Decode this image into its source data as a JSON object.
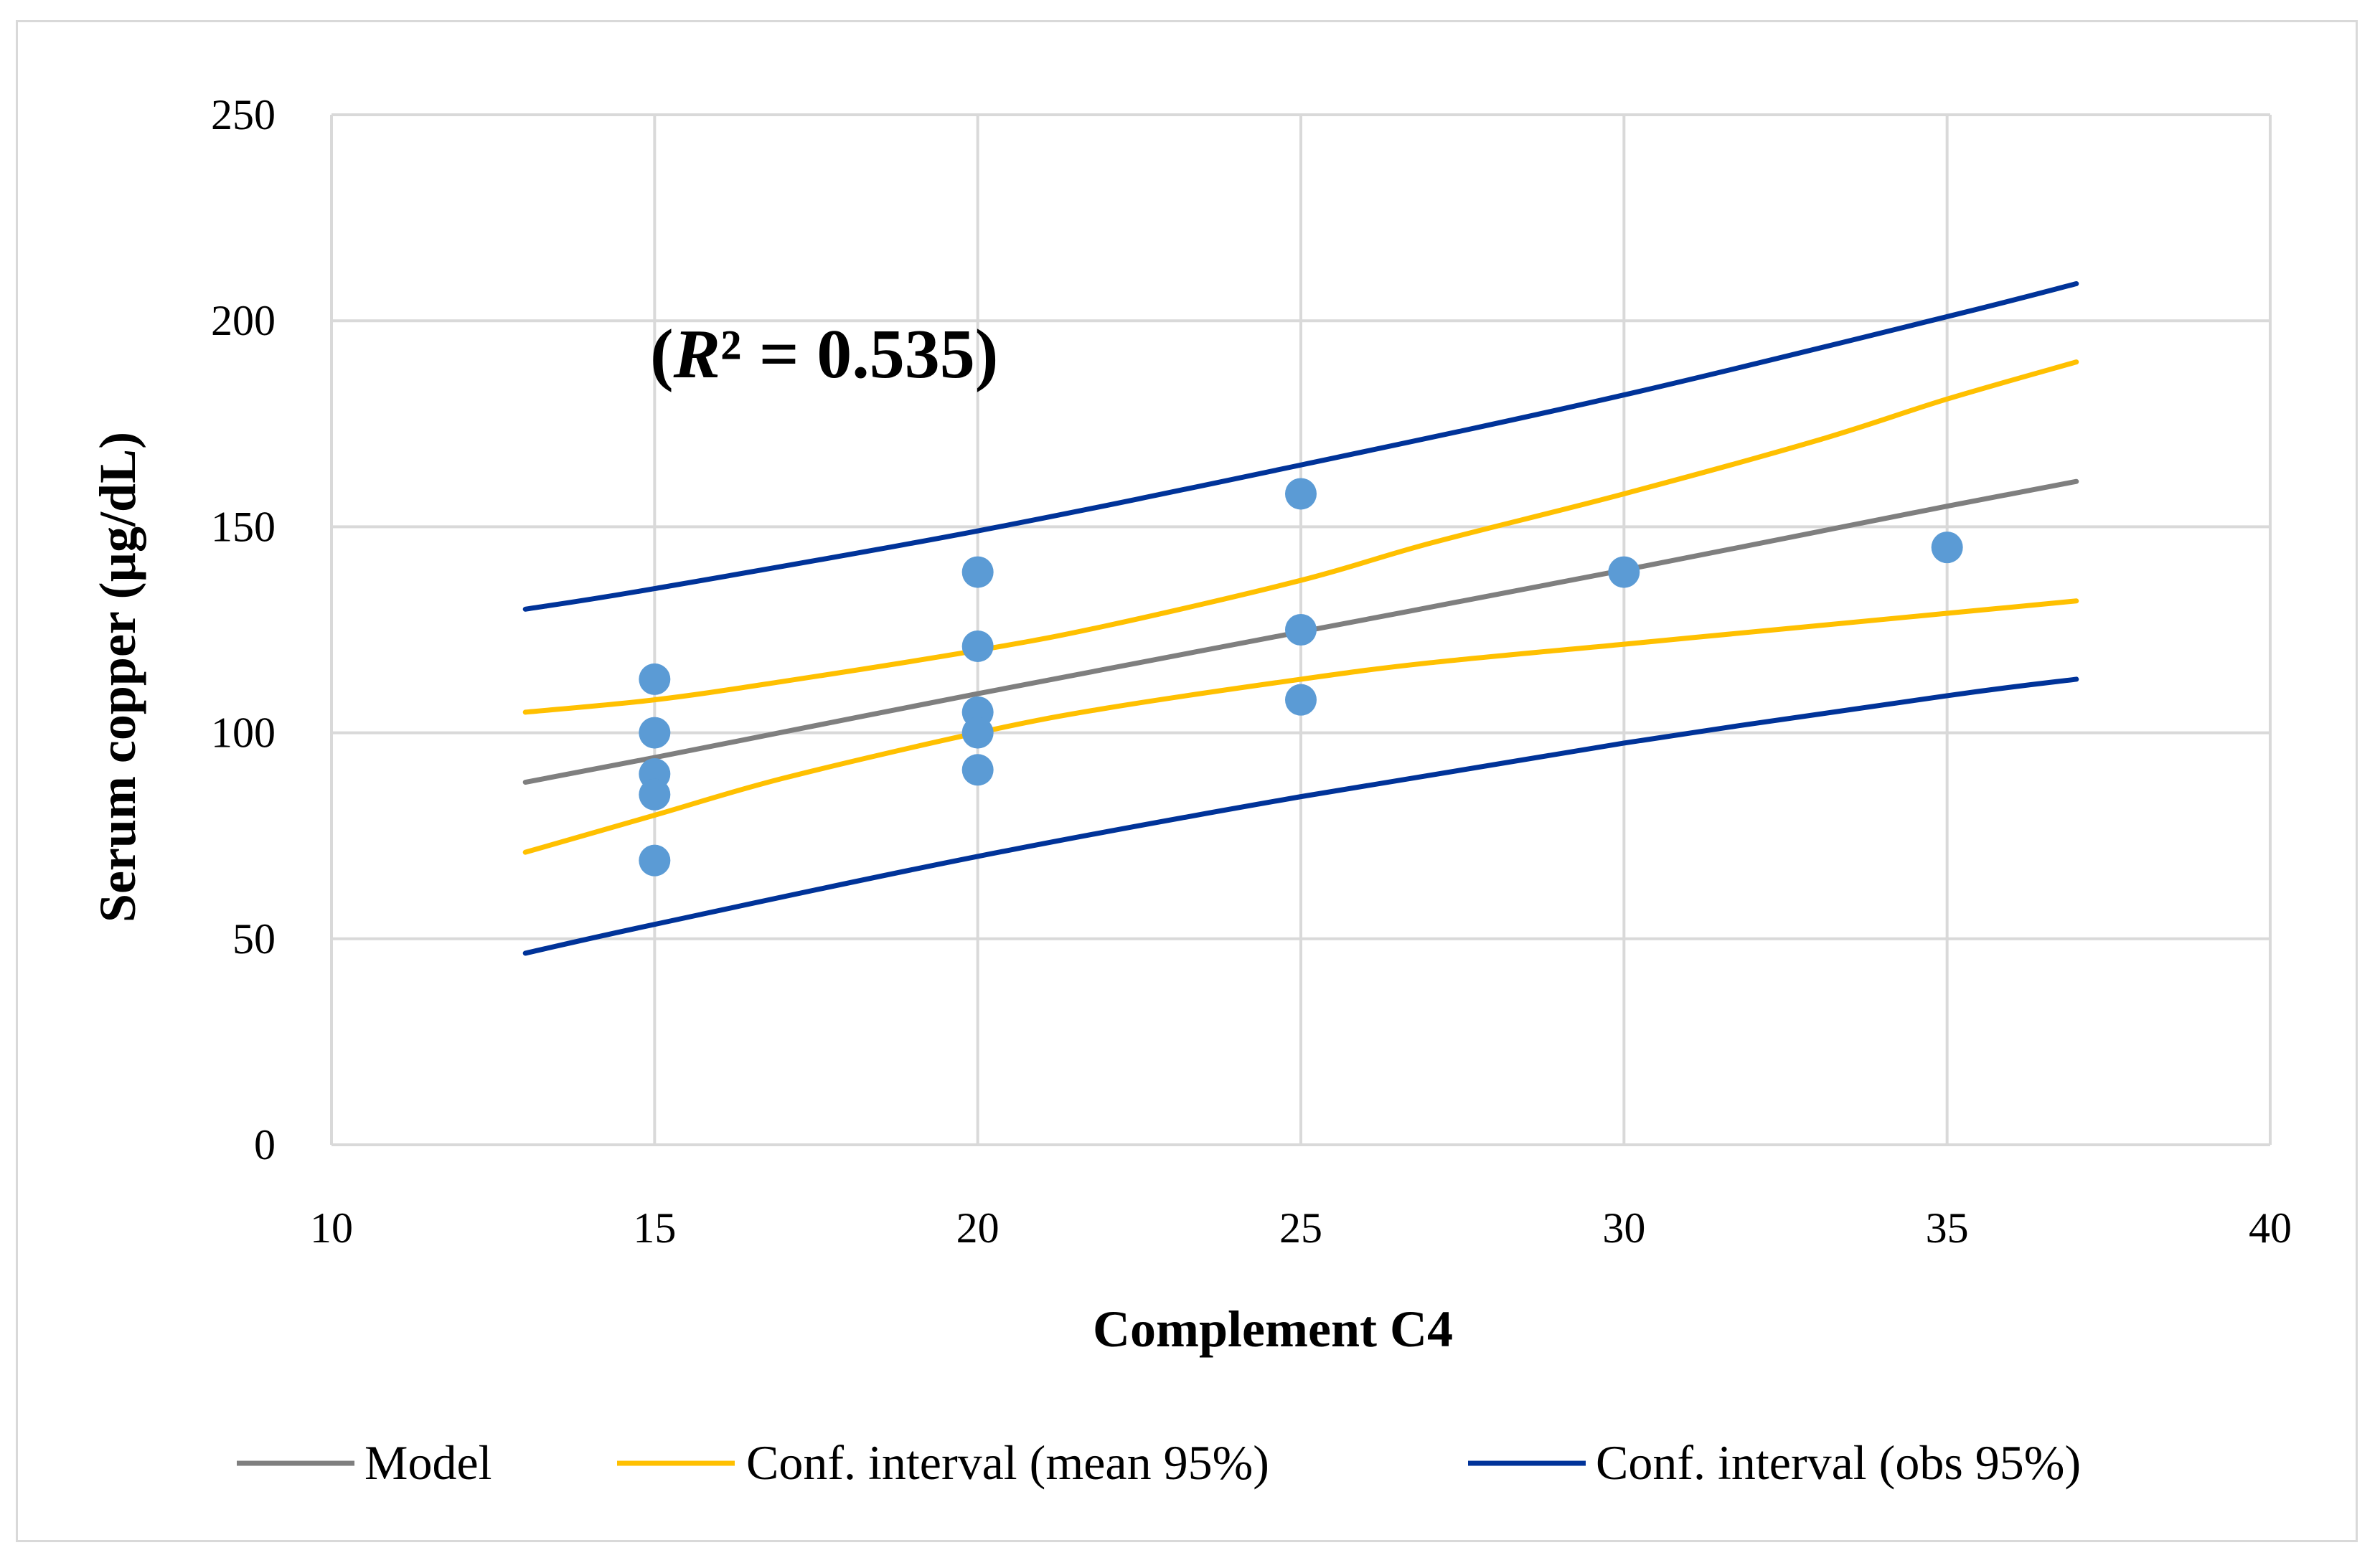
{
  "chart_data": {
    "type": "scatter",
    "title": "",
    "xlabel": "Complement C4",
    "ylabel": "Serum copper (µg/dL)",
    "xlim": [
      10,
      40
    ],
    "ylim": [
      0,
      250
    ],
    "x_ticks": [
      10,
      15,
      20,
      25,
      30,
      35,
      40
    ],
    "y_ticks": [
      0,
      50,
      100,
      150,
      200,
      250
    ],
    "grid": true,
    "annotation": {
      "open": "(",
      "symbol": "R",
      "rest": "² = 0.535)"
    },
    "points": {
      "name": "Observations",
      "color": "#5b9bd5",
      "x": [
        15,
        15,
        15,
        15,
        15,
        20,
        20,
        20,
        20,
        20,
        25,
        25,
        25,
        30,
        35
      ],
      "y": [
        113,
        100,
        90,
        85,
        69,
        139,
        121,
        105,
        100,
        91,
        158,
        125,
        108,
        139,
        145
      ]
    },
    "series": [
      {
        "name": "Model",
        "color": "#7f7f7f",
        "x": [
          13,
          15,
          20,
          25,
          30,
          35,
          37
        ],
        "y": [
          88,
          94,
          109.5,
          124.5,
          139.5,
          155,
          161
        ]
      },
      {
        "name": "Conf. interval (mean 95%)",
        "color": "#ffc000",
        "x": [
          13,
          15,
          17,
          20,
          22,
          25,
          27,
          30,
          33,
          35,
          37
        ],
        "y": [
          105,
          108,
          112.5,
          120,
          126,
          137,
          146,
          158,
          171,
          181,
          190
        ],
        "y2": [
          71,
          80,
          89,
          100,
          106,
          113,
          117,
          121.5,
          126,
          129,
          132
        ]
      },
      {
        "name": "Conf. interval (obs 95%)",
        "color": "#003399",
        "x": [
          13,
          15,
          20,
          25,
          30,
          35,
          37
        ],
        "y": [
          130,
          135,
          149,
          165,
          182,
          201,
          209
        ],
        "y2": [
          46.5,
          53.5,
          70,
          84.5,
          97.5,
          109,
          113
        ]
      }
    ],
    "legend": {
      "position": "bottom",
      "items": [
        "Model",
        "Conf. interval (mean 95%)",
        "Conf. interval (obs 95%)"
      ]
    }
  }
}
